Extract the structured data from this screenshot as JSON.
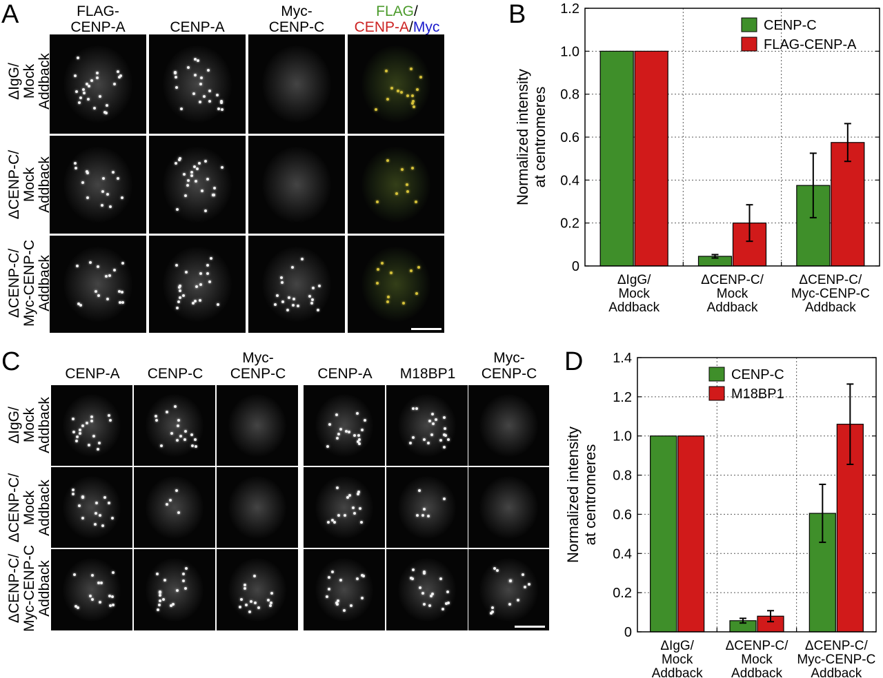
{
  "panel_a": {
    "letter": "A",
    "col_headers": [
      {
        "line1": "FLAG-",
        "line2": "CENP-A"
      },
      {
        "line1": "",
        "line2": "CENP-A"
      },
      {
        "line1": "Myc-",
        "line2": "CENP-C"
      },
      {
        "line1_green": "FLAG",
        "line1_slash": "/",
        "line2_red": "CENP-A",
        "line2_slash": "/",
        "line2_blue": "Myc"
      }
    ],
    "row_headers": [
      {
        "l1": "ΔIgG/",
        "l2": "Mock",
        "l3": "Addback"
      },
      {
        "l1": "ΔCENP-C/",
        "l2": "Mock",
        "l3": "Addback"
      },
      {
        "l1": "ΔCENP-C/",
        "l2": "Myc-CENP-C",
        "l3": "Addback"
      }
    ]
  },
  "panel_b": {
    "letter": "B"
  },
  "panel_c": {
    "letter": "C",
    "col_headers": [
      {
        "line1": "",
        "line2": "CENP-A"
      },
      {
        "line1": "",
        "line2": "CENP-C"
      },
      {
        "line1": "Myc-",
        "line2": "CENP-C"
      },
      {
        "line1": "",
        "line2": "CENP-A"
      },
      {
        "line1": "",
        "line2": "M18BP1"
      },
      {
        "line1": "Myc-",
        "line2": "CENP-C"
      }
    ],
    "row_headers": [
      {
        "l1": "ΔIgG/",
        "l2": "Mock",
        "l3": "Addback"
      },
      {
        "l1": "ΔCENP-C/",
        "l2": "Mock",
        "l3": "Addback"
      },
      {
        "l1": "ΔCENP-C/",
        "l2": "Myc-CENP-C",
        "l3": "Addback"
      }
    ]
  },
  "panel_d": {
    "letter": "D"
  },
  "colors": {
    "green": "#3f8f2a",
    "red": "#d11a1a",
    "blue": "#1a1acc",
    "flag_green": "#4a9a2a",
    "cenpa_red": "#cc2222"
  },
  "chart_data": [
    {
      "type": "bar",
      "panel": "B",
      "categories": [
        [
          "ΔIgG/",
          "Mock",
          "Addback"
        ],
        [
          "ΔCENP-C/",
          "Mock",
          "Addback"
        ],
        [
          "ΔCENP-C/",
          "Myc-CENP-C",
          "Addback"
        ]
      ],
      "series": [
        {
          "name": "CENP-C",
          "color": "#3f8f2a",
          "values": [
            1.0,
            0.045,
            0.375
          ],
          "errors": [
            0,
            0.008,
            0.15
          ]
        },
        {
          "name": "FLAG-CENP-A",
          "color": "#d11a1a",
          "values": [
            1.0,
            0.2,
            0.575
          ],
          "errors": [
            0,
            0.085,
            0.088
          ]
        }
      ],
      "ylabel": [
        "Normalized intensity",
        "at centromeres"
      ],
      "ylim": [
        0,
        1.2
      ],
      "yticks": [
        "0",
        "0.2",
        "0.4",
        "0.6",
        "0.8",
        "1.0",
        "1.2"
      ],
      "ytick_values": [
        0,
        0.2,
        0.4,
        0.6,
        0.8,
        1.0,
        1.2
      ],
      "grid": true,
      "legend_position": "top-right"
    },
    {
      "type": "bar",
      "panel": "D",
      "categories": [
        [
          "ΔIgG/",
          "Mock",
          "Addback"
        ],
        [
          "ΔCENP-C/",
          "Mock",
          "Addback"
        ],
        [
          "ΔCENP-C/",
          "Myc-CENP-C",
          "Addback"
        ]
      ],
      "series": [
        {
          "name": "CENP-C",
          "color": "#3f8f2a",
          "values": [
            1.0,
            0.057,
            0.605
          ],
          "errors": [
            0,
            0.012,
            0.148
          ]
        },
        {
          "name": "M18BP1",
          "color": "#d11a1a",
          "values": [
            1.0,
            0.08,
            1.06
          ],
          "errors": [
            0,
            0.028,
            0.205
          ]
        }
      ],
      "ylabel": [
        "Normalized intensity",
        "at centromeres"
      ],
      "ylim": [
        0,
        1.4
      ],
      "yticks": [
        "0",
        "0.2",
        "0.4",
        "0.6",
        "0.8",
        "1.0",
        "1.2",
        "1.4"
      ],
      "ytick_values": [
        0,
        0.2,
        0.4,
        0.6,
        0.8,
        1.0,
        1.2,
        1.4
      ],
      "grid": true,
      "legend_position": "top-left"
    }
  ]
}
